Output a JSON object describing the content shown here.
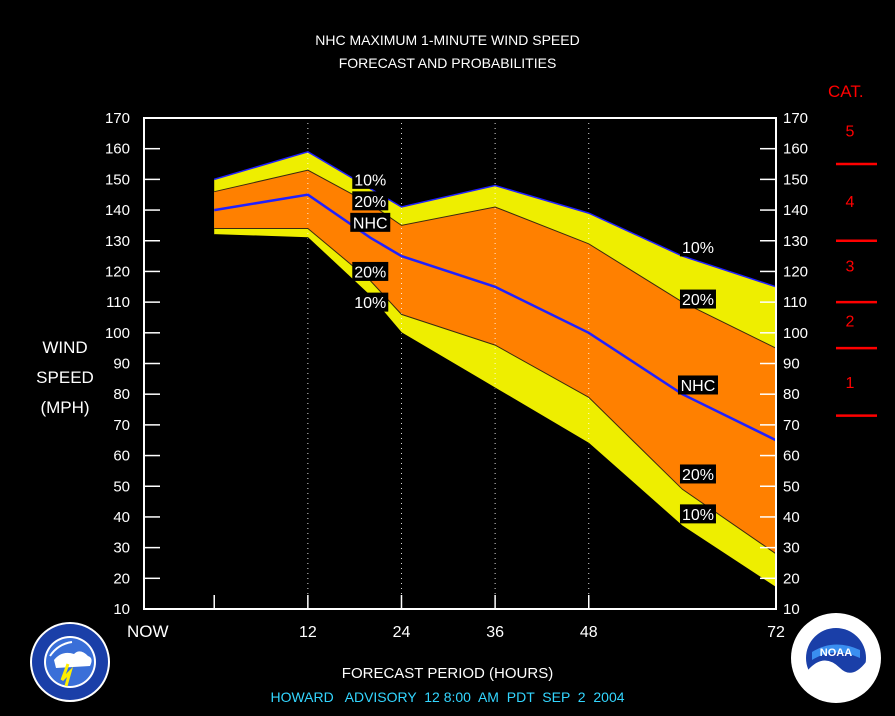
{
  "title_line1": "NHC MAXIMUM 1-MINUTE WIND SPEED",
  "title_line2": "FORECAST AND PROBABILITIES",
  "ylabel_lines": [
    "WIND",
    "SPEED",
    "(MPH)"
  ],
  "xlabel": "FORECAST PERIOD (HOURS)",
  "footer": "HOWARD   ADVISORY  12 8:00  AM  PDT  SEP  2  2004",
  "cat_title": "CAT.",
  "colors": {
    "background": "#000000",
    "outer_band": "#eeee00",
    "inner_band": "#ff8000",
    "nhc_line": "#2020ff",
    "category": "#ff0000",
    "footer": "#33d6ff"
  },
  "chart_data": {
    "type": "area",
    "x": [
      0,
      12,
      20,
      24,
      36,
      48,
      60,
      72
    ],
    "x_ticks": [
      {
        "value": 0,
        "label": "NOW"
      },
      {
        "value": 12,
        "label": "12"
      },
      {
        "value": 24,
        "label": "24"
      },
      {
        "value": 36,
        "label": "36"
      },
      {
        "value": 48,
        "label": "48"
      },
      {
        "value": 72,
        "label": "72"
      }
    ],
    "vertical_gridlines": [
      12,
      24,
      36,
      48
    ],
    "xlim": [
      -9,
      72
    ],
    "ylim": [
      10,
      170
    ],
    "y_ticks": [
      10,
      20,
      30,
      40,
      50,
      60,
      70,
      80,
      90,
      100,
      110,
      120,
      130,
      140,
      150,
      160,
      170
    ],
    "series": [
      {
        "name": "10%",
        "values": [
          150,
          159,
          147,
          141,
          148,
          139,
          125,
          115
        ]
      },
      {
        "name": "20%",
        "values": [
          146,
          153,
          142,
          135,
          141,
          129,
          110,
          95
        ]
      },
      {
        "name": "NHC",
        "values": [
          140,
          145,
          131,
          125,
          115,
          100,
          80,
          65
        ]
      },
      {
        "name": "20%",
        "values": [
          134,
          134,
          117,
          106,
          96,
          79,
          49,
          28
        ]
      },
      {
        "name": "10%",
        "values": [
          132,
          131,
          112,
          100,
          82,
          64,
          37,
          17
        ]
      }
    ],
    "point_labels": [
      {
        "text": "10%",
        "x": 20,
        "y": 150
      },
      {
        "text": "20%",
        "x": 20,
        "y": 143
      },
      {
        "text": "NHC",
        "x": 20,
        "y": 136
      },
      {
        "text": "20%",
        "x": 20,
        "y": 120
      },
      {
        "text": "10%",
        "x": 20,
        "y": 110
      },
      {
        "text": "10%",
        "x": 62,
        "y": 128
      },
      {
        "text": "20%",
        "x": 62,
        "y": 111
      },
      {
        "text": "NHC",
        "x": 62,
        "y": 83
      },
      {
        "text": "20%",
        "x": 62,
        "y": 54
      },
      {
        "text": "10%",
        "x": 62,
        "y": 41
      }
    ],
    "categories": [
      {
        "label": "5",
        "value": 166
      },
      {
        "label": "4",
        "value": 143
      },
      {
        "label": "3",
        "value": 122
      },
      {
        "label": "2",
        "value": 104
      },
      {
        "label": "1",
        "value": 84
      }
    ],
    "category_dividers": [
      155,
      130,
      110,
      95,
      73
    ]
  }
}
